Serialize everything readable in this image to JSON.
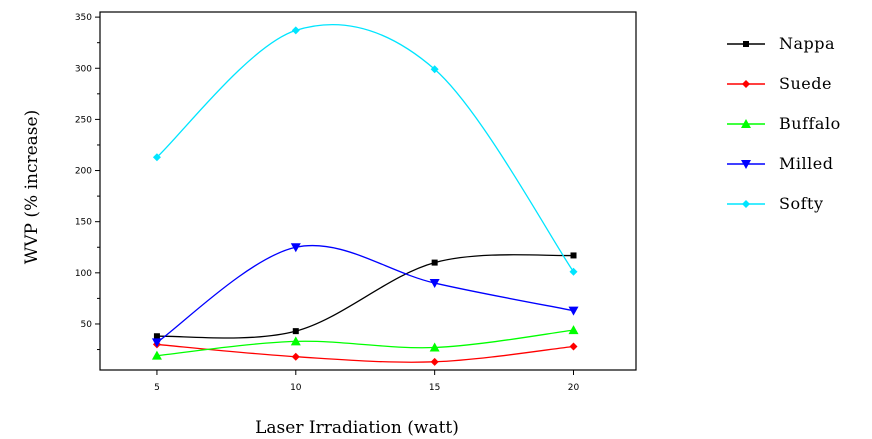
{
  "chart_data": {
    "type": "line",
    "title": "",
    "xlabel": "Laser Irradiation (watt)",
    "ylabel": "WVP (% increase)",
    "x": [
      5,
      10,
      15,
      20
    ],
    "xlim": [
      2.95,
      22.25
    ],
    "ylim": [
      5,
      355
    ],
    "xticks": [
      5,
      10,
      15,
      20
    ],
    "yticks": [
      50,
      100,
      150,
      200,
      250,
      300,
      350
    ],
    "grid": false,
    "legend_position": "right",
    "series": [
      {
        "name": "Nappa",
        "color": "#000000",
        "marker": "square",
        "values": [
          38,
          43,
          110,
          117
        ]
      },
      {
        "name": "Suede",
        "color": "#ff0000",
        "marker": "diamond",
        "values": [
          30,
          18,
          13,
          28
        ]
      },
      {
        "name": "Buffalo",
        "color": "#00ff00",
        "marker": "triangle-up",
        "values": [
          19,
          33,
          27,
          44
        ]
      },
      {
        "name": "Milled",
        "color": "#0000ff",
        "marker": "triangle-down",
        "values": [
          32,
          125,
          90,
          63
        ]
      },
      {
        "name": "Softy",
        "color": "#00e5ff",
        "marker": "diamond",
        "values": [
          213,
          337,
          299,
          101
        ]
      }
    ]
  }
}
